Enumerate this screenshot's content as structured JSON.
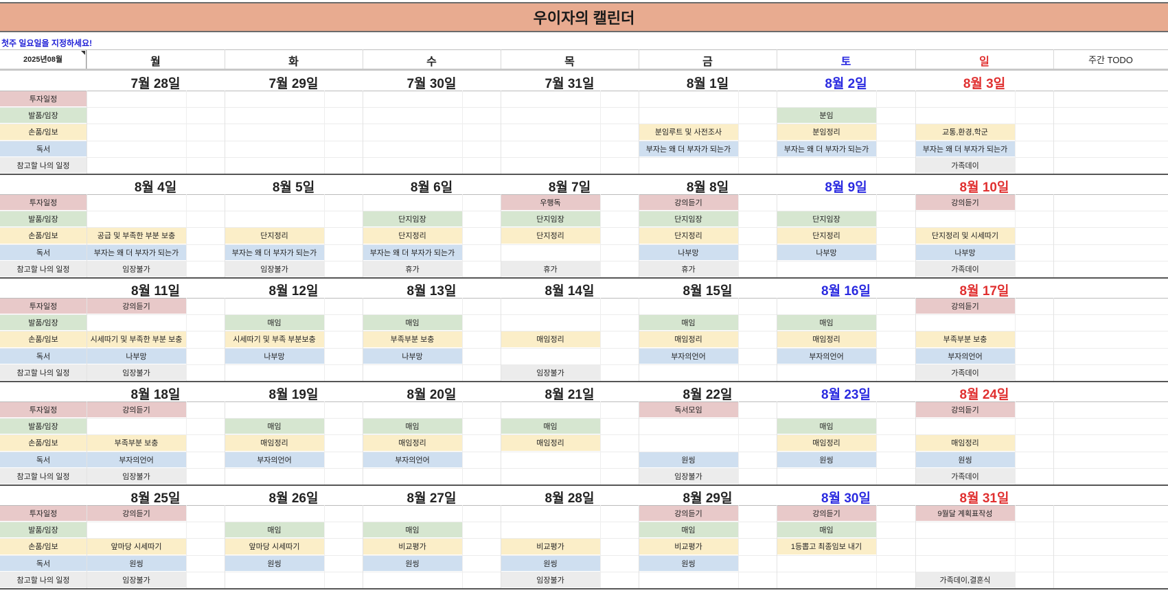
{
  "title": "우이자의 캘린더",
  "note": "첫주 일요일을 지정하세요!",
  "month_label": "2025년08월",
  "days": [
    "월",
    "화",
    "수",
    "목",
    "금",
    "토",
    "일"
  ],
  "todo_header": "주간 TODO",
  "categories": [
    {
      "label": "투자일정",
      "color": "#e8c9c9"
    },
    {
      "label": "발품/임장",
      "color": "#d6e6d0"
    },
    {
      "label": "손품/임보",
      "color": "#fbeec8"
    },
    {
      "label": "독서",
      "color": "#cfdff0"
    },
    {
      "label": "참고할 나의 일정",
      "color": "#ececec"
    }
  ],
  "weeks": [
    {
      "dates": [
        "7월 28일",
        "7월 29일",
        "7월 30일",
        "7월 31일",
        "8월 1일",
        "8월 2일",
        "8월 3일"
      ],
      "rows": [
        [
          "",
          "",
          "",
          "",
          "",
          "",
          ""
        ],
        [
          "",
          "",
          "",
          "",
          "",
          "분임",
          ""
        ],
        [
          "",
          "",
          "",
          "",
          "분임루트 및 사전조사",
          "분임정리",
          "교통,환경,학군"
        ],
        [
          "",
          "",
          "",
          "",
          "부자는 왜 더 부자가 되는가",
          "부자는 왜 더 부자가 되는가",
          "부자는 왜 더 부자가 되는가"
        ],
        [
          "",
          "",
          "",
          "",
          "",
          "",
          "가족데이"
        ]
      ]
    },
    {
      "dates": [
        "8월 4일",
        "8월 5일",
        "8월 6일",
        "8월 7일",
        "8월 8일",
        "8월 9일",
        "8월 10일"
      ],
      "rows": [
        [
          "",
          "",
          "",
          "우행독",
          "강의듣기",
          "",
          "강의듣기"
        ],
        [
          "",
          "",
          "단지임장",
          "단지임장",
          "단지임장",
          "단지임장",
          ""
        ],
        [
          "공급 및 부족한 부분 보충",
          "단지정리",
          "단지정리",
          "단지정리",
          "단지정리",
          "단지정리",
          "단지정리 및 시세따기"
        ],
        [
          "부자는 왜 더 부자가 되는가",
          "부자는 왜 더 부자가 되는가",
          "부자는 왜 더 부자가 되는가",
          "",
          "나부망",
          "나부망",
          "나부망"
        ],
        [
          "임장불가",
          "임장불가",
          "휴가",
          "휴가",
          "휴가",
          "",
          "가족데이"
        ]
      ]
    },
    {
      "dates": [
        "8월 11일",
        "8월 12일",
        "8월 13일",
        "8월 14일",
        "8월 15일",
        "8월 16일",
        "8월 17일"
      ],
      "rows": [
        [
          "강의듣기",
          "",
          "",
          "",
          "",
          "",
          "강의듣기"
        ],
        [
          "",
          "매임",
          "매임",
          "",
          "매임",
          "매임",
          ""
        ],
        [
          "시세따기 및 부족한 부분 보충",
          "시세따기 및 부족 부분보충",
          "부족부분 보충",
          "매임정리",
          "매임정리",
          "매임정리",
          "부족부분 보충"
        ],
        [
          "나부망",
          "나부망",
          "나부망",
          "",
          "부자의언어",
          "부자의언어",
          "부자의언어"
        ],
        [
          "임장불가",
          "",
          "",
          "임장불가",
          "",
          "",
          "가족데이"
        ]
      ]
    },
    {
      "dates": [
        "8월 18일",
        "8월 19일",
        "8월 20일",
        "8월 21일",
        "8월 22일",
        "8월 23일",
        "8월 24일"
      ],
      "rows": [
        [
          "강의듣기",
          "",
          "",
          "",
          "독서모임",
          "",
          "강의듣기"
        ],
        [
          "",
          "매임",
          "매임",
          "매임",
          "",
          "매임",
          ""
        ],
        [
          "부족부분 보충",
          "매임정리",
          "매임정리",
          "매임정리",
          "",
          "매임정리",
          "매임정리"
        ],
        [
          "부자의언어",
          "부자의언어",
          "부자의언어",
          "",
          "원씽",
          "원씽",
          "원씽"
        ],
        [
          "임장불가",
          "",
          "",
          "",
          "임장불가",
          "",
          "가족데이"
        ]
      ]
    },
    {
      "dates": [
        "8월 25일",
        "8월 26일",
        "8월 27일",
        "8월 28일",
        "8월 29일",
        "8월 30일",
        "8월 31일"
      ],
      "rows": [
        [
          "강의듣기",
          "",
          "",
          "",
          "강의듣기",
          "강의듣기",
          "9월달 계획표작성"
        ],
        [
          "",
          "매임",
          "매임",
          "",
          "매임",
          "매임",
          ""
        ],
        [
          "앞마당 시세따기",
          "앞마당 시세따기",
          "비교평가",
          "비교평가",
          "비교평가",
          "1등뽑고 최종임보 내기",
          ""
        ],
        [
          "원씽",
          "원씽",
          "원씽",
          "원씽",
          "원씽",
          "",
          ""
        ],
        [
          "임장불가",
          "",
          "",
          "임장불가",
          "",
          "",
          "가족데이,결혼식"
        ]
      ]
    }
  ]
}
